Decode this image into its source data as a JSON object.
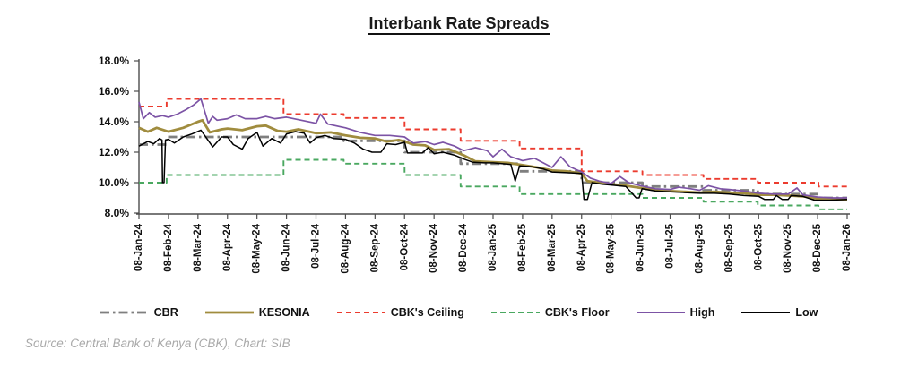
{
  "title": "Interbank Rate Spreads",
  "source_note": "Source: Central Bank of Kenya (CBK), Chart: SIB",
  "chart_data": {
    "type": "line",
    "title": "Interbank Rate Spreads",
    "grid": false,
    "legend_position": "bottom",
    "x_scale": "months since 08-Jan-24 (0) through 08-Jan-26 (24)",
    "x_axis": {
      "labels": [
        "08-Jan-24",
        "08-Feb-24",
        "08-Mar-24",
        "08-Apr-24",
        "08-May-24",
        "08-Jun-24",
        "08-Jul-24",
        "08-Aug-24",
        "08-Sep-24",
        "08-Oct-24",
        "08-Nov-24",
        "08-Dec-24",
        "08-Jan-25",
        "08-Feb-25",
        "08-Mar-25",
        "08-Apr-25",
        "08-May-25",
        "08-Jun-25",
        "08-Jul-25",
        "08-Aug-25",
        "08-Sep-25",
        "08-Oct-25",
        "08-Nov-25",
        "08-Dec-25",
        "08-Jan-26"
      ]
    },
    "y_axis": {
      "tick_labels": [
        "18.0%",
        "16.0%",
        "14.0%",
        "12.0%",
        "10.0%",
        "8.0%"
      ],
      "tick_values": [
        18,
        16,
        14,
        12,
        10,
        8
      ],
      "min": 8,
      "max": 18,
      "unit": "%"
    },
    "series": [
      {
        "name": "CBR",
        "color": "#7f7f7f",
        "dash": "10 4 2.5 4",
        "width": 2.8,
        "points": [
          [
            0,
            12.5
          ],
          [
            0.94,
            12.5
          ],
          [
            0.94,
            13.0
          ],
          [
            6.94,
            13.0
          ],
          [
            6.94,
            12.75
          ],
          [
            9.0,
            12.75
          ],
          [
            9.0,
            12.0
          ],
          [
            10.9,
            12.0
          ],
          [
            10.9,
            11.25
          ],
          [
            12.9,
            11.25
          ],
          [
            12.9,
            10.75
          ],
          [
            15.0,
            10.75
          ],
          [
            15.0,
            10.0
          ],
          [
            17.06,
            10.0
          ],
          [
            17.06,
            9.75
          ],
          [
            19.13,
            9.75
          ],
          [
            19.13,
            9.5
          ],
          [
            20.97,
            9.5
          ],
          [
            20.97,
            9.25
          ],
          [
            23.03,
            9.25
          ],
          [
            23.03,
            9.0
          ],
          [
            24,
            9.0
          ]
        ]
      },
      {
        "name": "KESONIA",
        "color": "#a08c3e",
        "dash": "",
        "width": 2.8,
        "points": [
          [
            0,
            13.6
          ],
          [
            0.3,
            13.35
          ],
          [
            0.6,
            13.6
          ],
          [
            1,
            13.35
          ],
          [
            1.5,
            13.6
          ],
          [
            2,
            14.0
          ],
          [
            2.15,
            14.1
          ],
          [
            2.4,
            13.3
          ],
          [
            2.8,
            13.5
          ],
          [
            3,
            13.55
          ],
          [
            3.5,
            13.45
          ],
          [
            4,
            13.7
          ],
          [
            4.3,
            13.75
          ],
          [
            4.7,
            13.4
          ],
          [
            5,
            13.35
          ],
          [
            5.4,
            13.5
          ],
          [
            6,
            13.25
          ],
          [
            6.5,
            13.3
          ],
          [
            7,
            13.1
          ],
          [
            7.5,
            12.95
          ],
          [
            8,
            12.9
          ],
          [
            8.4,
            12.7
          ],
          [
            8.8,
            12.8
          ],
          [
            9,
            12.7
          ],
          [
            9.3,
            12.5
          ],
          [
            9.7,
            12.45
          ],
          [
            10,
            12.15
          ],
          [
            10.5,
            12.2
          ],
          [
            11,
            11.8
          ],
          [
            11.4,
            11.4
          ],
          [
            12,
            11.35
          ],
          [
            12.5,
            11.3
          ],
          [
            13,
            11.15
          ],
          [
            13.5,
            11.0
          ],
          [
            14,
            10.8
          ],
          [
            14.5,
            10.75
          ],
          [
            15,
            10.6
          ],
          [
            15.2,
            10.1
          ],
          [
            15.6,
            10.0
          ],
          [
            16,
            9.9
          ],
          [
            16.5,
            9.8
          ],
          [
            17,
            9.65
          ],
          [
            17.5,
            9.5
          ],
          [
            18,
            9.45
          ],
          [
            18.5,
            9.4
          ],
          [
            19,
            9.35
          ],
          [
            19.5,
            9.4
          ],
          [
            20,
            9.35
          ],
          [
            20.5,
            9.3
          ],
          [
            21,
            9.2
          ],
          [
            21.5,
            9.2
          ],
          [
            22,
            9.15
          ],
          [
            22.5,
            9.1
          ],
          [
            23,
            8.95
          ],
          [
            23.5,
            8.9
          ],
          [
            24,
            8.9
          ]
        ]
      },
      {
        "name": "CBK's Ceiling",
        "color": "#ec3b2e",
        "dash": "6 4",
        "width": 1.9,
        "points": [
          [
            0,
            15.0
          ],
          [
            0.94,
            15.0
          ],
          [
            0.94,
            15.5
          ],
          [
            4.9,
            15.5
          ],
          [
            4.9,
            14.5
          ],
          [
            6.94,
            14.5
          ],
          [
            6.94,
            14.25
          ],
          [
            9.0,
            14.25
          ],
          [
            9.0,
            13.5
          ],
          [
            10.9,
            13.5
          ],
          [
            10.9,
            12.75
          ],
          [
            12.9,
            12.75
          ],
          [
            12.9,
            12.25
          ],
          [
            15.0,
            12.25
          ],
          [
            15.0,
            10.75
          ],
          [
            17.06,
            10.75
          ],
          [
            17.06,
            10.5
          ],
          [
            19.13,
            10.5
          ],
          [
            19.13,
            10.25
          ],
          [
            20.97,
            10.25
          ],
          [
            20.97,
            10.0
          ],
          [
            23.03,
            10.0
          ],
          [
            23.03,
            9.75
          ],
          [
            24,
            9.75
          ]
        ]
      },
      {
        "name": "CBK's Floor",
        "color": "#4aa860",
        "dash": "6 4",
        "width": 1.9,
        "points": [
          [
            0,
            10.0
          ],
          [
            0.94,
            10.0
          ],
          [
            0.94,
            10.5
          ],
          [
            4.9,
            10.5
          ],
          [
            4.9,
            11.5
          ],
          [
            6.94,
            11.5
          ],
          [
            6.94,
            11.25
          ],
          [
            9.0,
            11.25
          ],
          [
            9.0,
            10.5
          ],
          [
            10.9,
            10.5
          ],
          [
            10.9,
            9.75
          ],
          [
            12.9,
            9.75
          ],
          [
            12.9,
            9.25
          ],
          [
            17.06,
            9.25
          ],
          [
            17.06,
            9.0
          ],
          [
            19.13,
            9.0
          ],
          [
            19.13,
            8.75
          ],
          [
            20.97,
            8.75
          ],
          [
            20.97,
            8.5
          ],
          [
            23.03,
            8.5
          ],
          [
            23.03,
            8.25
          ],
          [
            24,
            8.25
          ]
        ]
      },
      {
        "name": "High",
        "color": "#7c53a5",
        "dash": "",
        "width": 1.7,
        "points": [
          [
            0,
            15.3
          ],
          [
            0.15,
            14.2
          ],
          [
            0.35,
            14.6
          ],
          [
            0.55,
            14.3
          ],
          [
            0.8,
            14.4
          ],
          [
            1,
            14.3
          ],
          [
            1.3,
            14.5
          ],
          [
            1.6,
            14.8
          ],
          [
            1.85,
            15.1
          ],
          [
            2.1,
            15.5
          ],
          [
            2.35,
            13.9
          ],
          [
            2.5,
            14.35
          ],
          [
            2.65,
            14.1
          ],
          [
            3,
            14.2
          ],
          [
            3.3,
            14.45
          ],
          [
            3.6,
            14.2
          ],
          [
            4,
            14.2
          ],
          [
            4.3,
            14.35
          ],
          [
            4.6,
            14.2
          ],
          [
            5,
            14.3
          ],
          [
            5.5,
            14.1
          ],
          [
            6,
            13.9
          ],
          [
            6.15,
            14.5
          ],
          [
            6.4,
            13.85
          ],
          [
            7,
            13.6
          ],
          [
            7.5,
            13.3
          ],
          [
            8,
            13.1
          ],
          [
            8.5,
            13.1
          ],
          [
            9,
            13.0
          ],
          [
            9.3,
            12.6
          ],
          [
            9.7,
            12.7
          ],
          [
            10,
            12.5
          ],
          [
            10.3,
            12.65
          ],
          [
            10.7,
            12.4
          ],
          [
            11,
            12.1
          ],
          [
            11.4,
            12.3
          ],
          [
            11.8,
            12.1
          ],
          [
            12,
            11.7
          ],
          [
            12.3,
            12.2
          ],
          [
            12.6,
            11.7
          ],
          [
            13,
            11.45
          ],
          [
            13.4,
            11.6
          ],
          [
            13.7,
            11.3
          ],
          [
            14,
            11.0
          ],
          [
            14.3,
            11.7
          ],
          [
            14.6,
            11.05
          ],
          [
            15,
            10.7
          ],
          [
            15.3,
            10.3
          ],
          [
            15.6,
            10.1
          ],
          [
            16,
            9.95
          ],
          [
            16.3,
            10.4
          ],
          [
            16.6,
            10.0
          ],
          [
            17,
            9.8
          ],
          [
            17.5,
            9.6
          ],
          [
            18,
            9.55
          ],
          [
            18.3,
            9.7
          ],
          [
            18.7,
            9.6
          ],
          [
            19,
            9.5
          ],
          [
            19.3,
            9.8
          ],
          [
            19.7,
            9.6
          ],
          [
            20,
            9.55
          ],
          [
            20.5,
            9.45
          ],
          [
            21,
            9.3
          ],
          [
            21.5,
            9.25
          ],
          [
            22,
            9.25
          ],
          [
            22.3,
            9.65
          ],
          [
            22.5,
            9.2
          ],
          [
            23,
            9.05
          ],
          [
            23.5,
            9.0
          ],
          [
            24,
            9.0
          ]
        ]
      },
      {
        "name": "Low",
        "color": "#000000",
        "dash": "",
        "width": 1.5,
        "points": [
          [
            0,
            12.4
          ],
          [
            0.3,
            12.7
          ],
          [
            0.5,
            12.55
          ],
          [
            0.7,
            12.9
          ],
          [
            0.78,
            12.8
          ],
          [
            0.8,
            10.0
          ],
          [
            0.85,
            10.0
          ],
          [
            0.9,
            12.8
          ],
          [
            1,
            12.85
          ],
          [
            1.2,
            12.6
          ],
          [
            1.5,
            13.0
          ],
          [
            1.8,
            13.2
          ],
          [
            2.1,
            13.45
          ],
          [
            2.3,
            12.9
          ],
          [
            2.5,
            12.35
          ],
          [
            2.8,
            13.0
          ],
          [
            3,
            13.0
          ],
          [
            3.2,
            12.5
          ],
          [
            3.5,
            12.2
          ],
          [
            3.7,
            12.9
          ],
          [
            4,
            13.3
          ],
          [
            4.2,
            12.4
          ],
          [
            4.5,
            12.9
          ],
          [
            4.8,
            12.6
          ],
          [
            5,
            13.2
          ],
          [
            5.3,
            13.35
          ],
          [
            5.6,
            13.25
          ],
          [
            5.8,
            12.6
          ],
          [
            6,
            12.95
          ],
          [
            6.3,
            13.1
          ],
          [
            6.6,
            12.9
          ],
          [
            7,
            12.85
          ],
          [
            7.3,
            12.6
          ],
          [
            7.6,
            12.2
          ],
          [
            7.9,
            12.0
          ],
          [
            8.2,
            12.0
          ],
          [
            8.4,
            12.55
          ],
          [
            8.7,
            12.5
          ],
          [
            9,
            12.65
          ],
          [
            9.1,
            11.95
          ],
          [
            9.6,
            11.95
          ],
          [
            9.8,
            12.3
          ],
          [
            10,
            11.9
          ],
          [
            10.3,
            12.0
          ],
          [
            10.7,
            11.8
          ],
          [
            11,
            11.55
          ],
          [
            11.3,
            11.35
          ],
          [
            11.7,
            11.3
          ],
          [
            12,
            11.3
          ],
          [
            12.3,
            11.25
          ],
          [
            12.6,
            11.2
          ],
          [
            12.75,
            10.1
          ],
          [
            12.9,
            11.1
          ],
          [
            13.3,
            11.05
          ],
          [
            13.7,
            10.9
          ],
          [
            14,
            10.7
          ],
          [
            14.5,
            10.65
          ],
          [
            15,
            10.6
          ],
          [
            15.08,
            8.9
          ],
          [
            15.2,
            8.9
          ],
          [
            15.35,
            10.0
          ],
          [
            15.7,
            9.9
          ],
          [
            16,
            9.85
          ],
          [
            16.5,
            9.75
          ],
          [
            16.85,
            9.0
          ],
          [
            16.95,
            9.0
          ],
          [
            17.05,
            9.6
          ],
          [
            17.5,
            9.45
          ],
          [
            18,
            9.4
          ],
          [
            18.5,
            9.35
          ],
          [
            19,
            9.3
          ],
          [
            19.5,
            9.3
          ],
          [
            20,
            9.25
          ],
          [
            20.5,
            9.15
          ],
          [
            21,
            9.1
          ],
          [
            21.2,
            8.9
          ],
          [
            21.5,
            8.9
          ],
          [
            21.6,
            9.15
          ],
          [
            21.8,
            8.9
          ],
          [
            22.0,
            8.9
          ],
          [
            22.1,
            9.15
          ],
          [
            22.5,
            9.1
          ],
          [
            22.9,
            8.85
          ],
          [
            23.4,
            8.85
          ],
          [
            24,
            8.9
          ]
        ]
      }
    ]
  }
}
